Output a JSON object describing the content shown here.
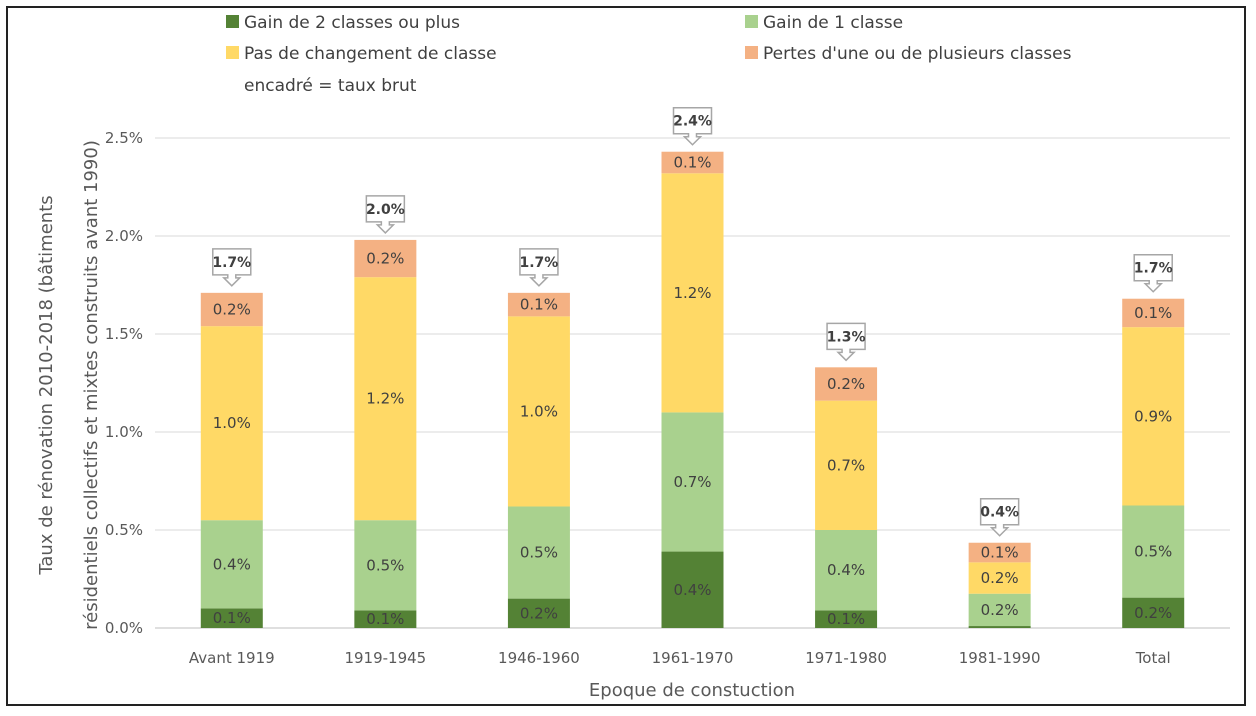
{
  "chart_data": {
    "type": "bar",
    "stacked": true,
    "title": "",
    "xlabel": "Epoque de constuction",
    "ylabel_lines": [
      "Taux de rénovation 2010-2018 (bâtiments",
      "résidentiels collectifs et mixtes construits avant 1990)"
    ],
    "ylim": [
      0,
      2.5
    ],
    "yticks": [
      0,
      0.5,
      1.0,
      1.5,
      2.0,
      2.5
    ],
    "ytick_labels": [
      "0.0%",
      "0.5%",
      "1.0%",
      "1.5%",
      "2.0%",
      "2.5%"
    ],
    "grid": true,
    "legend_note": "encadré = taux brut",
    "categories": [
      "Avant 1919",
      "1919-1945",
      "1946-1960",
      "1961-1970",
      "1971-1980",
      "1981-1990",
      "Total"
    ],
    "series": [
      {
        "name": "Gain de 2 classes ou plus",
        "color": "#548235",
        "values": [
          0.1,
          0.09,
          0.15,
          0.39,
          0.09,
          0.01,
          0.155
        ],
        "labels": [
          "0.1%",
          "0.1%",
          "0.2%",
          "0.4%",
          "0.1%",
          "",
          "0.2%"
        ]
      },
      {
        "name": "Gain de 1 classe",
        "color": "#A9D18E",
        "values": [
          0.45,
          0.46,
          0.47,
          0.71,
          0.41,
          0.165,
          0.47
        ],
        "labels": [
          "0.4%",
          "0.5%",
          "0.5%",
          "0.7%",
          "0.4%",
          "0.2%",
          "0.5%"
        ]
      },
      {
        "name": "Pas de changement de classe",
        "color": "#FFD966",
        "values": [
          0.99,
          1.24,
          0.97,
          1.22,
          0.66,
          0.16,
          0.91
        ],
        "labels": [
          "1.0%",
          "1.2%",
          "1.0%",
          "1.2%",
          "0.7%",
          "0.2%",
          "0.9%"
        ]
      },
      {
        "name": "Pertes d'une ou de plusieurs classes",
        "color": "#F4B183",
        "values": [
          0.17,
          0.19,
          0.12,
          0.11,
          0.17,
          0.1,
          0.145
        ],
        "labels": [
          "0.2%",
          "0.2%",
          "0.1%",
          "0.1%",
          "0.2%",
          "0.1%",
          "0.1%"
        ]
      }
    ],
    "totals": [
      1.71,
      1.98,
      1.71,
      2.43,
      1.33,
      0.435,
      1.68
    ],
    "total_labels": [
      "1.7%",
      "2.0%",
      "1.7%",
      "2.4%",
      "1.3%",
      "0.4%",
      "1.7%"
    ]
  }
}
